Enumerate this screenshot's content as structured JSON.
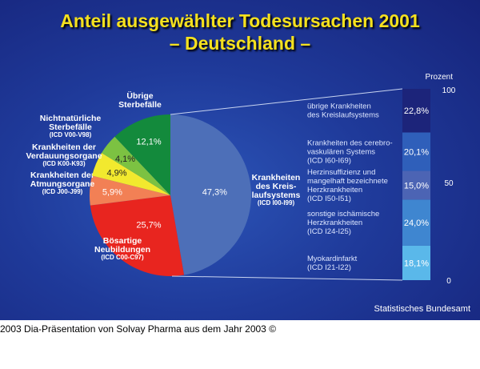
{
  "chart_data": [
    {
      "type": "pie",
      "title": "Anteil ausgewählter Todesursachen 2001",
      "subtitle": "– Deutschland –",
      "start": "top",
      "direction": "clockwise",
      "slices": [
        {
          "label": [
            "Krankheiten",
            "des Kreis-",
            "laufsystems"
          ],
          "code": "(ICD I00-I99)",
          "value": 47.3,
          "text": "47,3%",
          "color": "#4d6fb8"
        },
        {
          "label": [
            "Bösartige",
            "Neubildungen"
          ],
          "code": "(ICD C00-C97)",
          "value": 25.7,
          "text": "25,7%",
          "color": "#e8251f"
        },
        {
          "label": [
            "Krankheiten der",
            "Atmungsorgane"
          ],
          "code": "(ICD J00-J99)",
          "value": 5.9,
          "text": "5,9%",
          "color": "#f28055"
        },
        {
          "label": [
            "Krankheiten der",
            "Verdauungsorgane"
          ],
          "code": "(ICD K00-K93)",
          "value": 4.9,
          "text": "4,9%",
          "color": "#f2e92e"
        },
        {
          "label": [
            "Nichtnatürliche",
            "Sterbefälle"
          ],
          "code": "(ICD V00-V98)",
          "value": 4.1,
          "text": "4,1%",
          "color": "#7cc242"
        },
        {
          "label": [
            "Übrige",
            "Sterbefälle"
          ],
          "code": "",
          "value": 12.1,
          "text": "12,1%",
          "color": "#138a3c"
        }
      ]
    },
    {
      "type": "bar",
      "stacked": true,
      "ylabel": "Prozent",
      "ylim": [
        0,
        100
      ],
      "yticks": [
        "0",
        "50",
        "100"
      ],
      "segments_bottom_to_top": [
        {
          "label": [
            "Myokardinfarkt",
            "(ICD I21-I22)"
          ],
          "value": 18.1,
          "text": "18,1%",
          "color": "#5ab8ea"
        },
        {
          "label": [
            "sonstige ischämische",
            "Herzkrankheiten",
            "(ICD I24-I25)"
          ],
          "value": 24.0,
          "text": "24,0%",
          "color": "#3f86d0"
        },
        {
          "label": [
            "Herzinsuffizienz und",
            "mangelhaft bezeichnete",
            "Herzkrankheiten",
            "(ICD I50-I51)"
          ],
          "value": 15.0,
          "text": "15,0%",
          "color": "#4c64b4"
        },
        {
          "label": [
            "Krankheiten des cerebro-",
            "vaskulären Systems",
            "(ICD I60-I69)"
          ],
          "value": 20.1,
          "text": "20,1%",
          "color": "#2f5fba"
        },
        {
          "label": [
            "übrige Krankheiten",
            "des Kreislaufsystems"
          ],
          "value": 22.8,
          "text": "22,8%",
          "color": "#1c247a"
        }
      ]
    }
  ],
  "footer": {
    "source": "Statistisches Bundesamt",
    "caption": "2003 Dia-Präsentation von Solvay Pharma aus dem Jahr 2003 ©"
  }
}
